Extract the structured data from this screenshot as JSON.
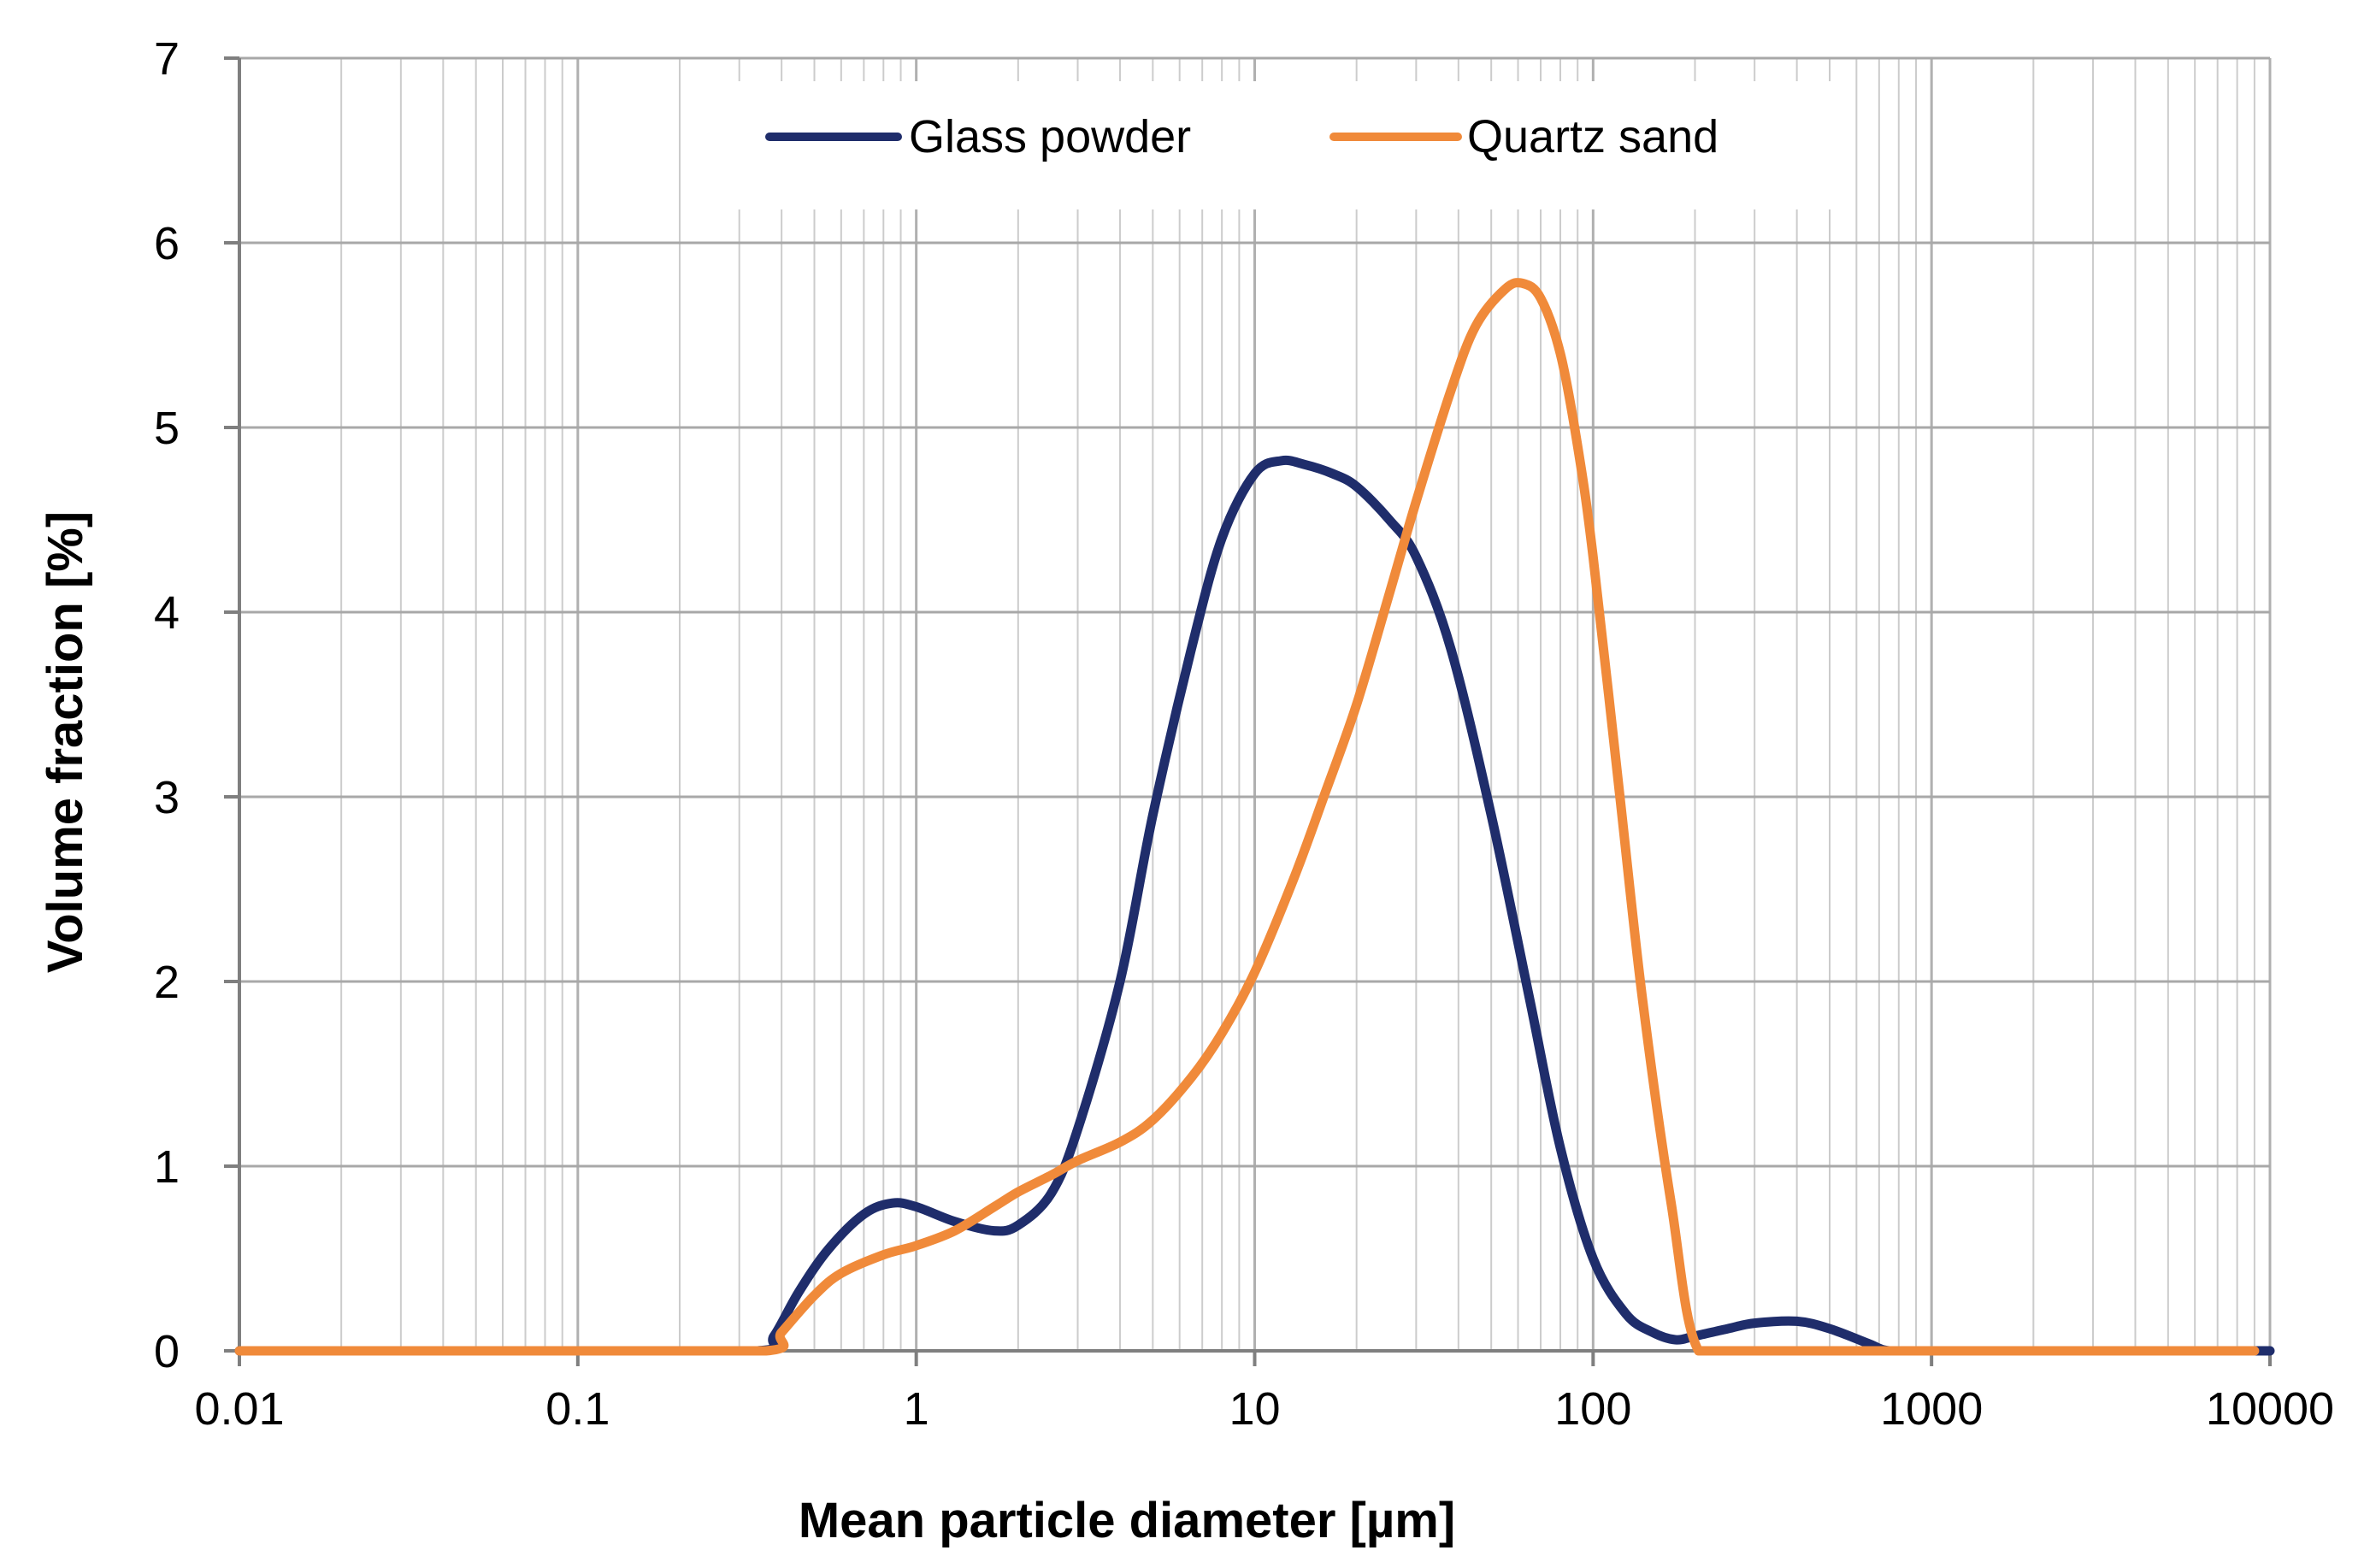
{
  "chart_data": {
    "type": "line",
    "title": "",
    "xlabel": "Mean particle diameter [µm]",
    "ylabel": "Volume fraction [%]",
    "xscale": "log",
    "xlim": [
      0.01,
      10000
    ],
    "ylim": [
      0,
      7
    ],
    "grid": true,
    "legend_position": "top-center",
    "x_tick_labels": [
      "0.01",
      "0.1",
      "1",
      "10",
      "100",
      "1000",
      "10000"
    ],
    "y_tick_labels": [
      "0",
      "1",
      "2",
      "3",
      "4",
      "5",
      "6",
      "7"
    ],
    "series": [
      {
        "name": "Glass powder",
        "color": "#1f2d6b",
        "x": [
          0.01,
          0.1,
          0.34,
          0.38,
          0.45,
          0.55,
          0.7,
          0.85,
          1.0,
          1.3,
          1.7,
          2.0,
          2.5,
          3.0,
          4.0,
          5.0,
          6.5,
          8.0,
          10.0,
          12.0,
          14.0,
          17.0,
          20.0,
          25.0,
          30.0,
          38.0,
          50.0,
          65.0,
          80.0,
          100.0,
          125.0,
          150.0,
          175.0,
          200.0,
          250.0,
          300.0,
          400.0,
          500.0,
          650.0,
          750.0,
          1000.0,
          10000.0
        ],
        "y": [
          0,
          0,
          0,
          0.08,
          0.32,
          0.55,
          0.74,
          0.8,
          0.78,
          0.7,
          0.65,
          0.68,
          0.85,
          1.2,
          2.0,
          2.9,
          3.8,
          4.4,
          4.75,
          4.82,
          4.8,
          4.75,
          4.68,
          4.5,
          4.3,
          3.8,
          2.9,
          1.9,
          1.1,
          0.5,
          0.2,
          0.1,
          0.06,
          0.08,
          0.12,
          0.15,
          0.16,
          0.12,
          0.04,
          0,
          0,
          0
        ]
      },
      {
        "name": "Quartz sand",
        "color": "#f08a3a",
        "x": [
          0.01,
          0.1,
          0.36,
          0.4,
          0.5,
          0.6,
          0.8,
          1.0,
          1.3,
          1.7,
          2.0,
          2.5,
          3.0,
          4.0,
          5.0,
          6.5,
          8.0,
          10.0,
          13.0,
          16.0,
          20.0,
          25.0,
          30.0,
          38.0,
          45.0,
          55.0,
          62.0,
          70.0,
          80.0,
          90.0,
          100.0,
          120.0,
          140.0,
          170.0,
          205.0,
          300.0,
          1000.0,
          9000.0
        ],
        "y": [
          0,
          0,
          0,
          0.1,
          0.3,
          0.42,
          0.52,
          0.57,
          0.65,
          0.78,
          0.86,
          0.95,
          1.03,
          1.13,
          1.25,
          1.48,
          1.72,
          2.05,
          2.55,
          3.0,
          3.5,
          4.1,
          4.6,
          5.2,
          5.55,
          5.75,
          5.78,
          5.7,
          5.4,
          4.9,
          4.3,
          3.0,
          1.9,
          0.8,
          0.0,
          0,
          0,
          0
        ]
      }
    ]
  }
}
